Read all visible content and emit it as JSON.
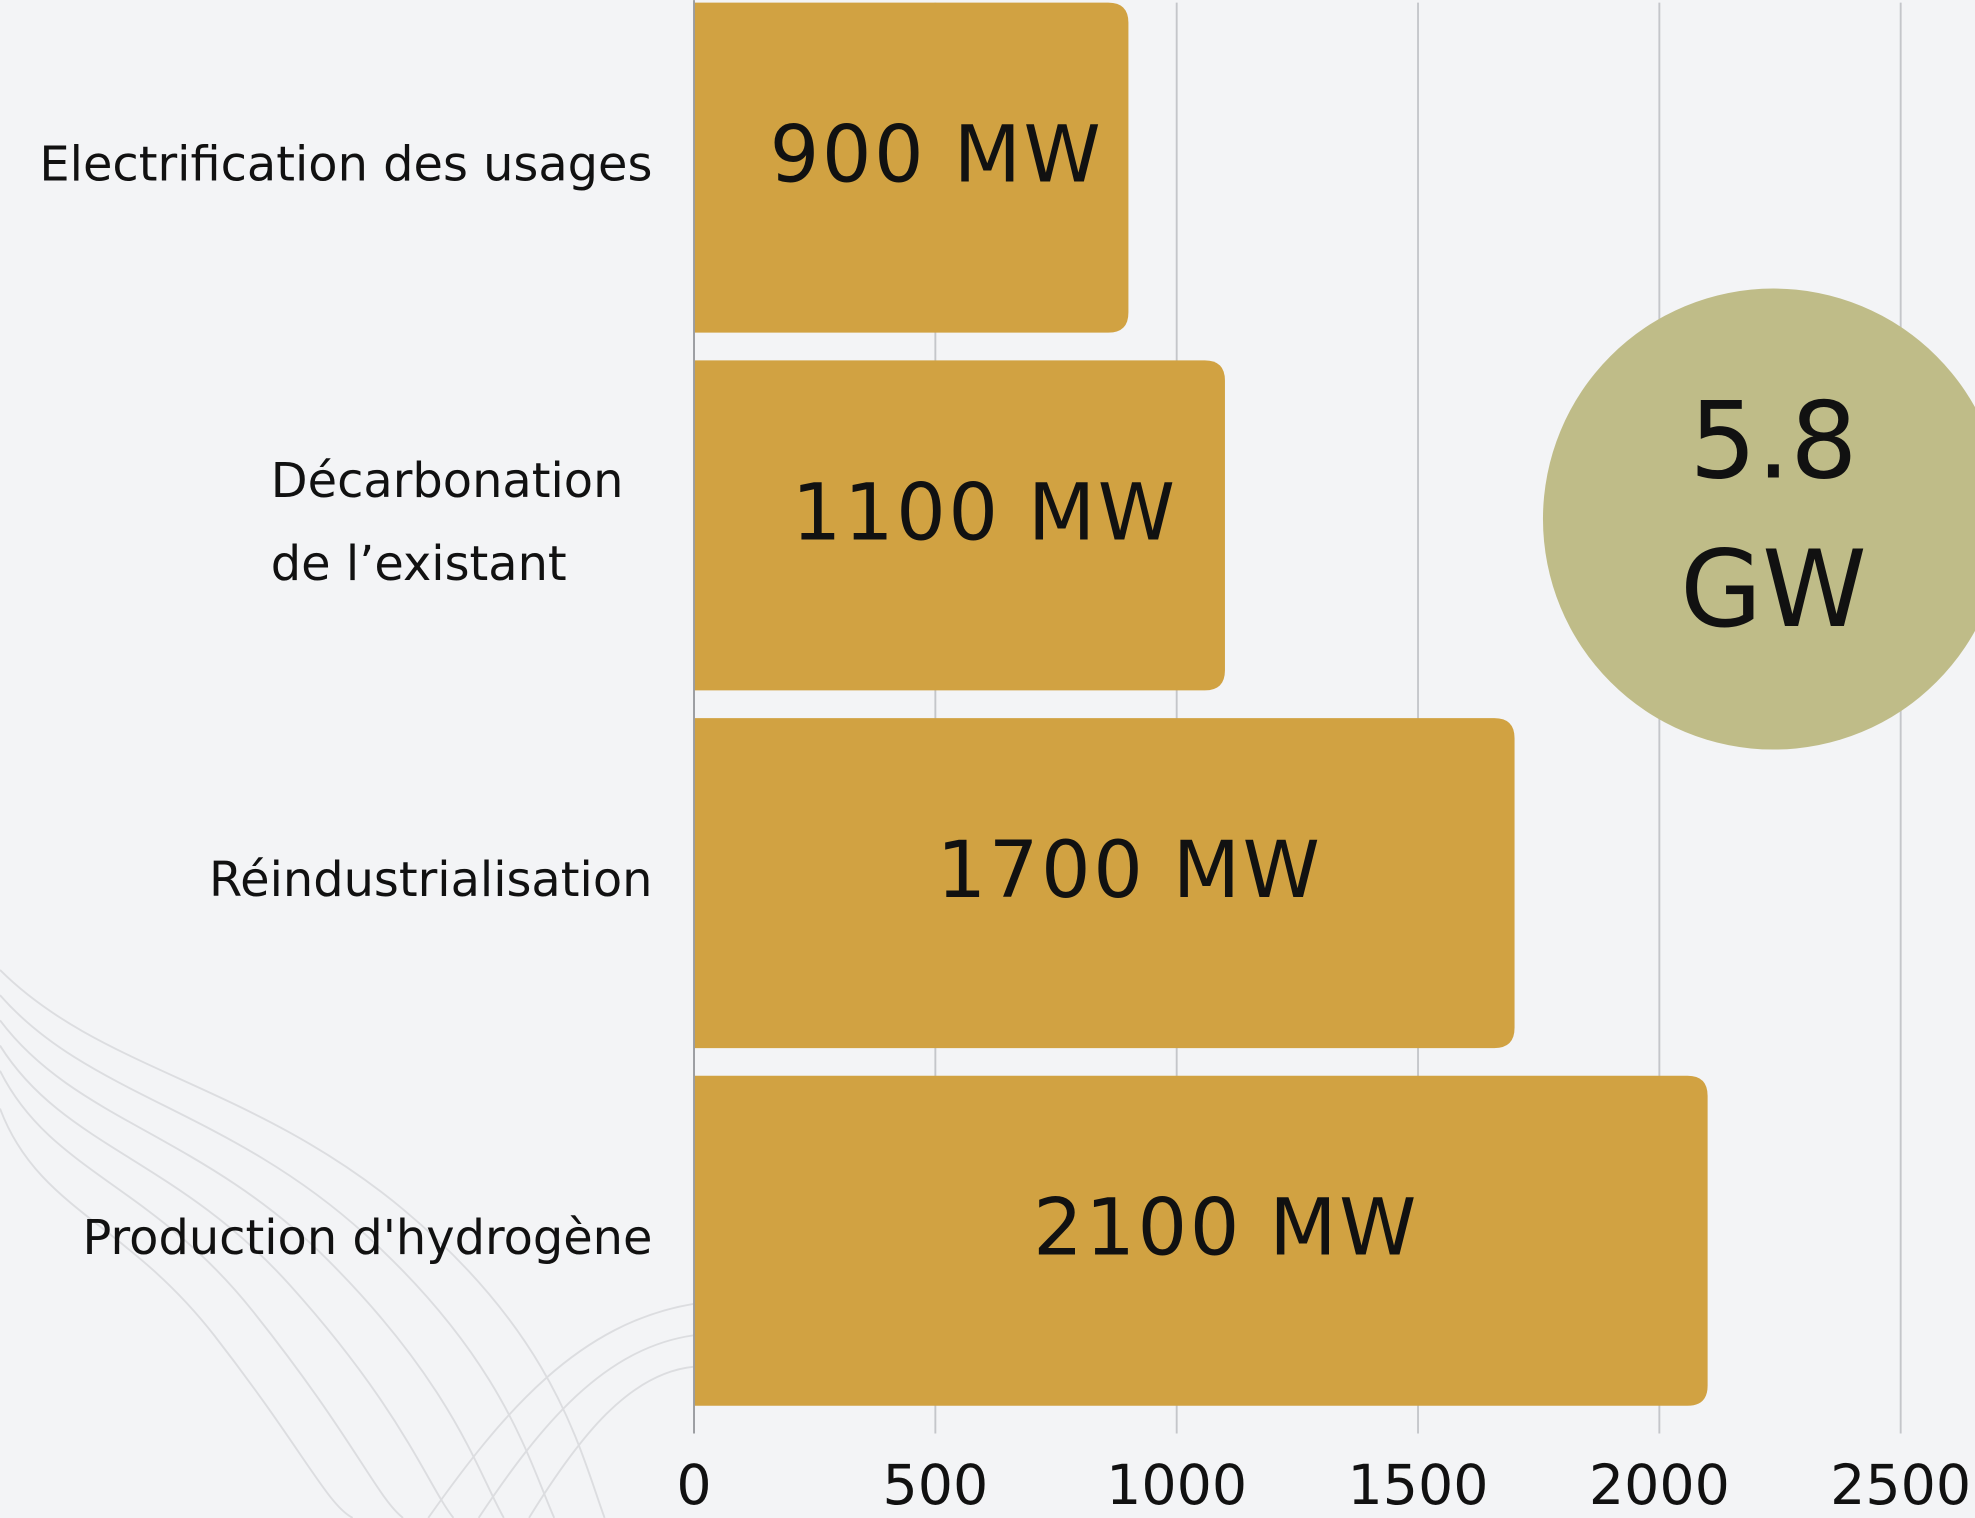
{
  "chart_data": {
    "type": "bar",
    "orientation": "horizontal",
    "categories": [
      "Electrification des usages",
      "Décarbonation\nde l’existant",
      "Réindustrialisation",
      "Production d'hydrogène"
    ],
    "values": [
      900,
      1100,
      1700,
      2100
    ],
    "value_labels": [
      "900 MW",
      "1100 MW",
      "1700 MW",
      "2100 MW"
    ],
    "color": "#d1a242",
    "xlim": [
      0,
      2500
    ],
    "xticks": [
      0,
      500,
      1000,
      1500,
      2000,
      2500
    ],
    "grid": true,
    "annotation": {
      "text": "5.8\nGW",
      "color": "#bfbc88"
    }
  }
}
